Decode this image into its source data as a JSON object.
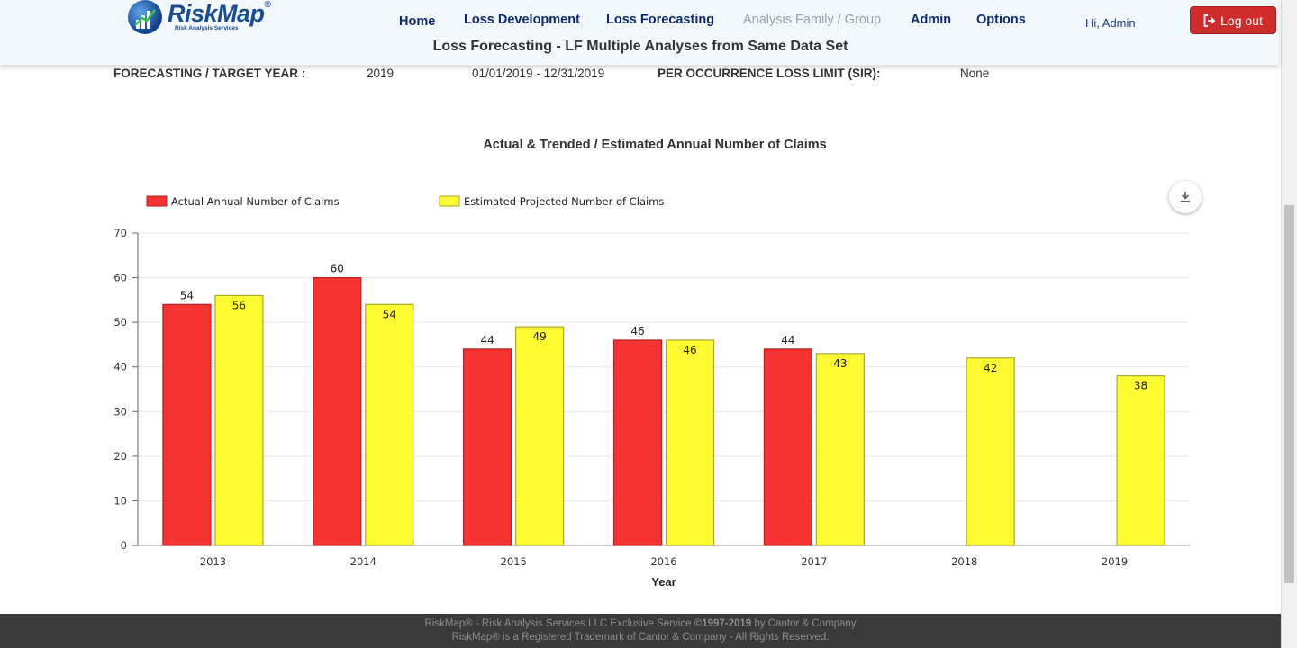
{
  "app": {
    "logo_text": "RiskMap",
    "logo_reg": "®",
    "logo_subtitle": "Risk Analysis Services",
    "page_title": "Loss Forecasting - LF Multiple Analyses from Same Data Set"
  },
  "nav": {
    "home": "Home",
    "loss_development": "Loss Development",
    "loss_forecasting": "Loss Forecasting",
    "analysis_family": "Analysis Family / Group",
    "admin": "Admin",
    "options": "Options"
  },
  "user": {
    "greeting": "Hi, Admin",
    "logout_label": "Log out"
  },
  "info": {
    "target_year_label": "FORECASTING / TARGET YEAR :",
    "target_year": "2019",
    "date_range": "01/01/2019 - 12/31/2019",
    "loss_limit_label": "PER OCCURRENCE LOSS LIMIT (SIR):",
    "loss_limit": "None"
  },
  "chart_data": {
    "type": "bar",
    "title": "Actual & Trended / Estimated Annual Number of Claims",
    "xlabel": "Year",
    "ylabel": "",
    "categories": [
      "2013",
      "2014",
      "2015",
      "2016",
      "2017",
      "2018",
      "2019"
    ],
    "series": [
      {
        "name": "Actual Annual Number of Claims",
        "color": "#f53333",
        "values": [
          54,
          60,
          44,
          46,
          44,
          null,
          null
        ]
      },
      {
        "name": "Estimated Projected Number of Claims",
        "color": "#fefb33",
        "values": [
          56,
          54,
          49,
          46,
          43,
          42,
          38
        ]
      }
    ],
    "ylim": [
      0,
      70
    ],
    "yticks": [
      0,
      10,
      20,
      30,
      40,
      50,
      60,
      70
    ],
    "grid": true,
    "legend": "top-left"
  },
  "footer": {
    "line1_prefix": "RiskMap® - Risk Analysis Services LLC Exclusive Service ",
    "line1_bold": "©1997-2019",
    "line1_suffix": " by Cantor & Company",
    "line2": "RiskMap® is a Registered Trademark of Cantor & Company - All Rights Reserved."
  },
  "icons": {
    "logout": "sign-out-icon",
    "download": "download-icon",
    "logo": "globe-chart-icon"
  }
}
